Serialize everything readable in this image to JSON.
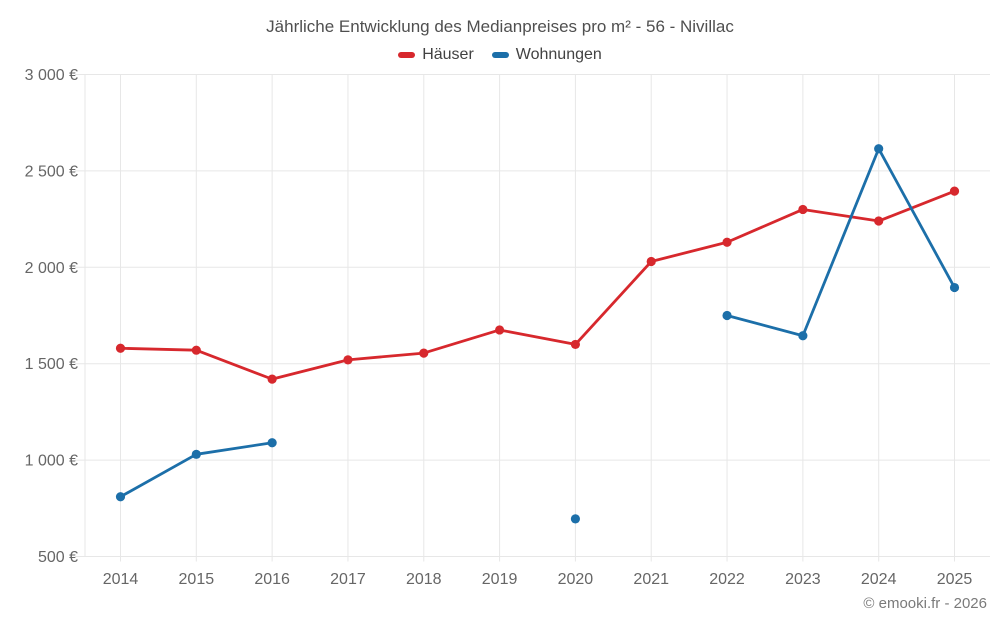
{
  "chart": {
    "title": "Jährliche Entwicklung des Medianpreises pro m² - 56 - Nivillac",
    "footer": "© emooki.fr - 2026"
  },
  "chart_data": {
    "type": "line",
    "title": "Jährliche Entwicklung des Medianpreises pro m² - 56 - Nivillac",
    "categories": [
      2014,
      2015,
      2016,
      2017,
      2018,
      2019,
      2020,
      2021,
      2022,
      2023,
      2024,
      2025
    ],
    "series": [
      {
        "name": "Häuser",
        "color": "#d7282d",
        "values": [
          1580,
          1570,
          1420,
          1520,
          1555,
          1675,
          1600,
          2030,
          2130,
          2300,
          2240,
          2395
        ]
      },
      {
        "name": "Wohnungen",
        "color": "#1c6fa9",
        "values": [
          810,
          1030,
          1090,
          null,
          null,
          null,
          695,
          null,
          1750,
          1645,
          2615,
          1895
        ]
      }
    ],
    "ylim": [
      500,
      3000
    ],
    "ytick_step": 500,
    "ytick_suffix": " €",
    "grid": true,
    "legend_position": "top",
    "axis_label_color": "#666666",
    "grid_color": "#e7e7e7"
  }
}
